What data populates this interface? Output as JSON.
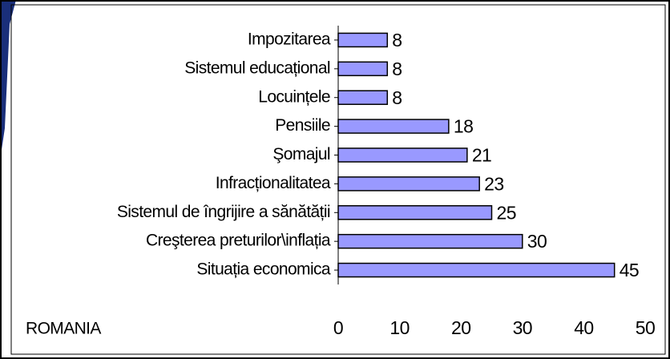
{
  "chart_data": {
    "type": "hbar",
    "categories": [
      "Impozitarea",
      "Sistemul educațional",
      "Locuințele",
      "Pensiile",
      "Şomajul",
      "Infracționalitatea",
      "Sistemul de îngrijire a sănătății",
      "Creşterea preturilor\\inflația",
      "Situația economica"
    ],
    "values": [
      8,
      8,
      8,
      18,
      21,
      23,
      25,
      30,
      45
    ],
    "color": "#9999ff",
    "xlim": [
      0,
      50
    ],
    "xticks": [
      0,
      10,
      20,
      30,
      40,
      50
    ],
    "annotation": "ROMANIA"
  }
}
